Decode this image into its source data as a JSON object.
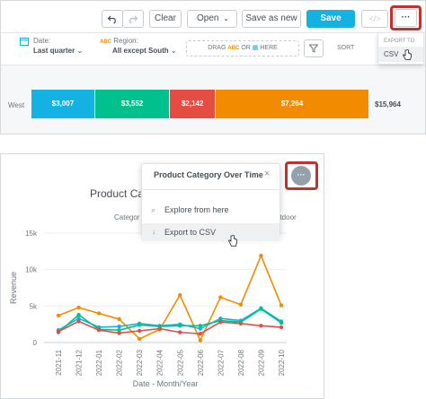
{
  "toolbar": {
    "undo_icon": "undo-icon",
    "redo_icon": "redo-icon",
    "clear_label": "Clear",
    "open_label": "Open",
    "save_as_new_label": "Save as new",
    "save_label": "Save",
    "embed_label": "</>",
    "more_label": "···"
  },
  "export_menu": {
    "header": "EXPORT TO",
    "csv_label": "CSV"
  },
  "filters": {
    "date_label": "Date:",
    "date_value": "Last quarter",
    "region_prefix": "ABC",
    "region_label": "Region:",
    "region_value": "All except South",
    "drag_text": "DRAG",
    "drag_abc": "ABC",
    "drag_or": "OR",
    "drag_here": "HERE",
    "sort_label": "SORT"
  },
  "stacked_bar": {
    "row_label": "West",
    "segments": [
      {
        "label": "$3,007",
        "value": 3007,
        "color": "#14b2e2"
      },
      {
        "label": "$3,552",
        "value": 3552,
        "color": "#00c18d"
      },
      {
        "label": "$2,142",
        "value": 2142,
        "color": "#e54d42"
      },
      {
        "label": "$7,264",
        "value": 7264,
        "color": "#f38b00"
      }
    ],
    "total_label": "$15,964"
  },
  "popover": {
    "title": "Product Category Over Time",
    "close": "×",
    "explore_label": "Explore from here",
    "export_label": "Export to CSV"
  },
  "chart_more_label": "···",
  "chart_title_partial": "Product Cat",
  "legend_partial_left": "Categor",
  "legend_partial_right": "utdoor",
  "chart_data": {
    "type": "line",
    "xlabel": "Date - Month/Year",
    "ylabel": "Revenue",
    "ylim": [
      0,
      15000
    ],
    "yticks": [
      {
        "value": 0,
        "label": "0"
      },
      {
        "value": 5000,
        "label": "5k"
      },
      {
        "value": 10000,
        "label": "10k"
      },
      {
        "value": 15000,
        "label": "15k"
      }
    ],
    "x": [
      "2021-11",
      "2021-12",
      "2022-01",
      "2022-02",
      "2022-03",
      "2022-04",
      "2022-05",
      "2022-06",
      "2022-07",
      "2022-08",
      "2022-09",
      "2022-10"
    ],
    "series": [
      {
        "color": "#f38b00",
        "values": [
          3700,
          4800,
          4000,
          3200,
          500,
          1800,
          6500,
          300,
          6200,
          5200,
          11900,
          5100
        ]
      },
      {
        "color": "#14b2e2",
        "values": [
          1700,
          3300,
          2100,
          2200,
          2600,
          2300,
          2500,
          1900,
          3300,
          3000,
          4700,
          2900
        ]
      },
      {
        "color": "#00c18d",
        "values": [
          1400,
          3800,
          1800,
          1700,
          2400,
          2200,
          2300,
          2300,
          3000,
          2800,
          4600,
          2700
        ]
      },
      {
        "color": "#e54d42",
        "values": [
          1500,
          2900,
          1700,
          1300,
          1600,
          1900,
          1400,
          1200,
          2800,
          2600,
          2300,
          2100
        ]
      }
    ]
  }
}
